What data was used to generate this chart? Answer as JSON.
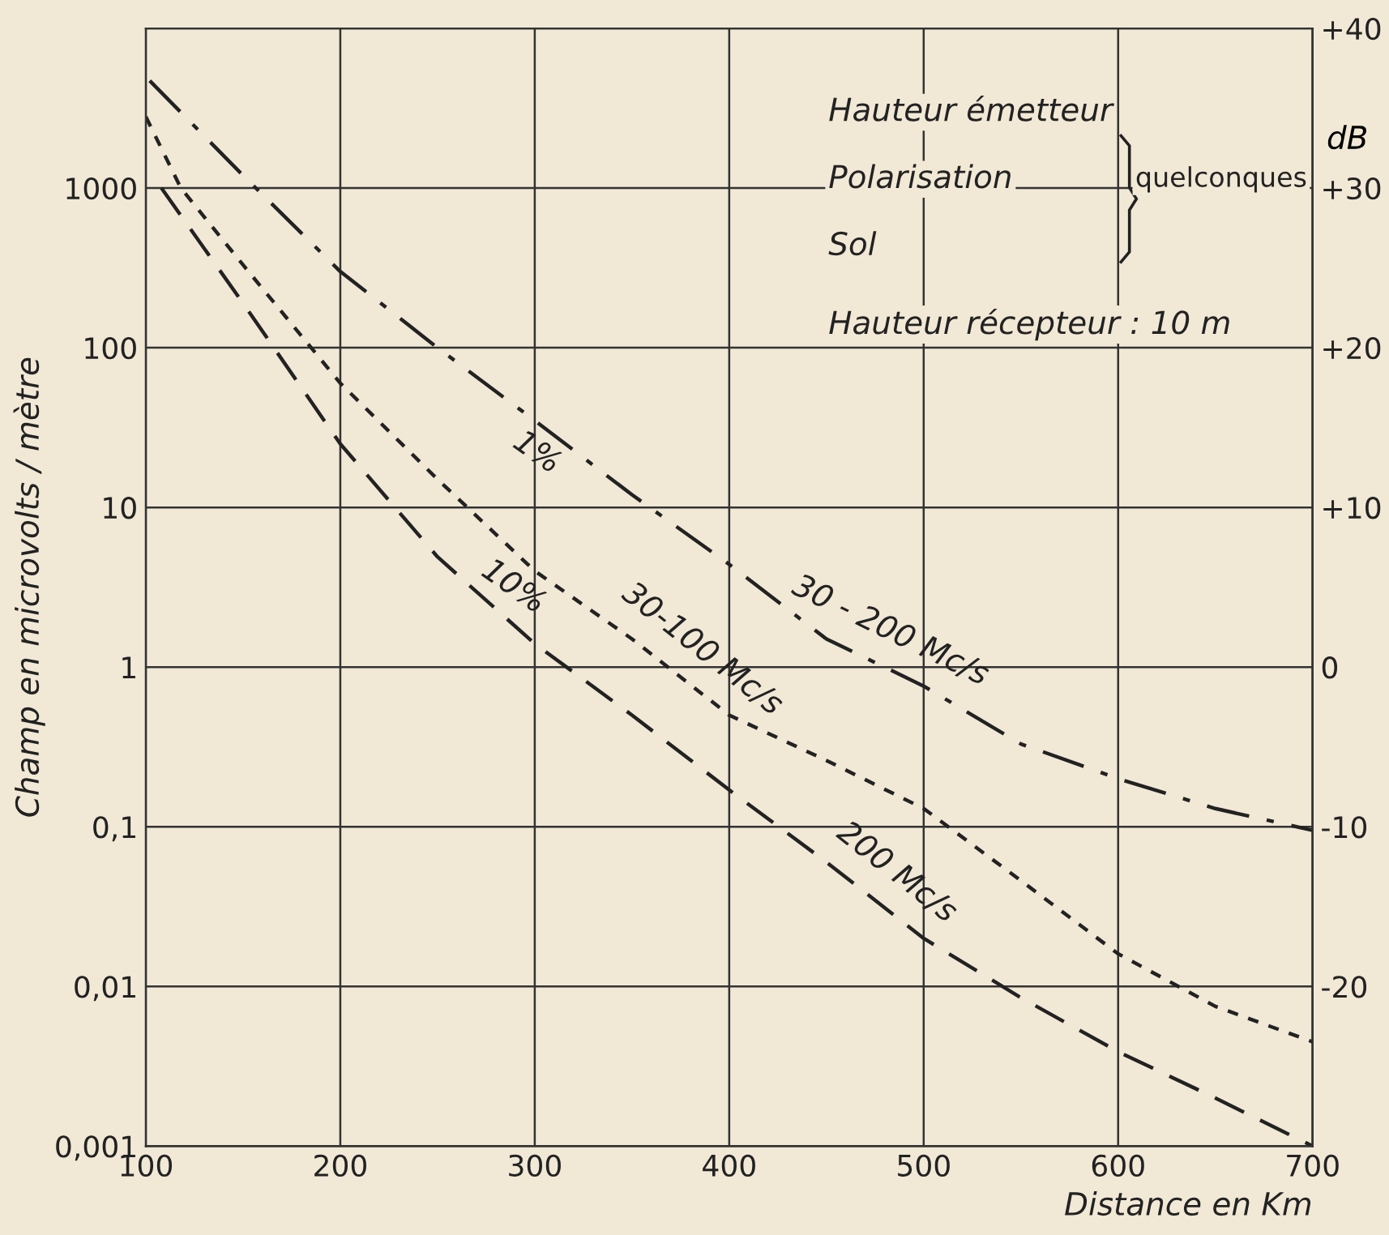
{
  "chart_data": {
    "type": "line",
    "xlabel": "Distance en Km",
    "ylabel": "Champ en microvolts / mètre",
    "y2label": "dB",
    "xlim": [
      100,
      700
    ],
    "xticks": [
      100,
      200,
      300,
      400,
      500,
      600,
      700
    ],
    "log": "y",
    "ylim": [
      0.001,
      10000
    ],
    "yticks": [
      {
        "value": 0.001,
        "label": "0,001"
      },
      {
        "value": 0.01,
        "label": "0,01"
      },
      {
        "value": 0.1,
        "label": "0,1"
      },
      {
        "value": 1,
        "label": "1"
      },
      {
        "value": 10,
        "label": "10"
      },
      {
        "value": 100,
        "label": "100"
      },
      {
        "value": 1000,
        "label": "1000"
      }
    ],
    "y2lim": [
      -30,
      40
    ],
    "y2ticks": [
      {
        "value": -20,
        "label": "-20"
      },
      {
        "value": -10,
        "label": "-10"
      },
      0,
      {
        "value": 10,
        "label": "+10"
      },
      {
        "value": 20,
        "label": "+20"
      },
      {
        "value": 30,
        "label": "+30"
      },
      {
        "value": 40,
        "label": "+40"
      }
    ],
    "grid": true,
    "marker": "none",
    "series": [
      {
        "name": "30 - 200 Mc/s",
        "color": "#222222",
        "line_style": "dashdot",
        "x": [
          102,
          150,
          200,
          250,
          300,
          350,
          400,
          450,
          500,
          550,
          600,
          650,
          700
        ],
        "values": [
          4700,
          1200,
          300,
          100,
          35,
          12,
          4.4,
          1.5,
          0.76,
          0.33,
          0.2,
          0.13,
          0.095
        ]
      },
      {
        "name": "30-100 Mc/s",
        "color": "#222222",
        "line_style": "dotted",
        "x": [
          100,
          118,
          150,
          200,
          250,
          300,
          350,
          400,
          450,
          500,
          550,
          600,
          650,
          700
        ],
        "values": [
          2800,
          1000,
          330,
          60,
          15,
          4,
          1.5,
          0.5,
          0.26,
          0.13,
          0.046,
          0.016,
          0.0075,
          0.0045
        ]
      },
      {
        "name": "200 Mc/s",
        "color": "#222222",
        "line_style": "dashed",
        "x": [
          108,
          150,
          200,
          250,
          300,
          350,
          400,
          450,
          500,
          550,
          600,
          650,
          700
        ],
        "values": [
          1000,
          190,
          25,
          4.9,
          1.4,
          0.5,
          0.17,
          0.06,
          0.02,
          0.0085,
          0.0039,
          0.002,
          0.001
        ]
      }
    ],
    "annotations": [
      "Hauteur émetteur",
      "Polarisation",
      "Sol",
      "quelconques",
      "Hauteur récepteur : 10 m",
      "1%",
      "10%"
    ]
  }
}
